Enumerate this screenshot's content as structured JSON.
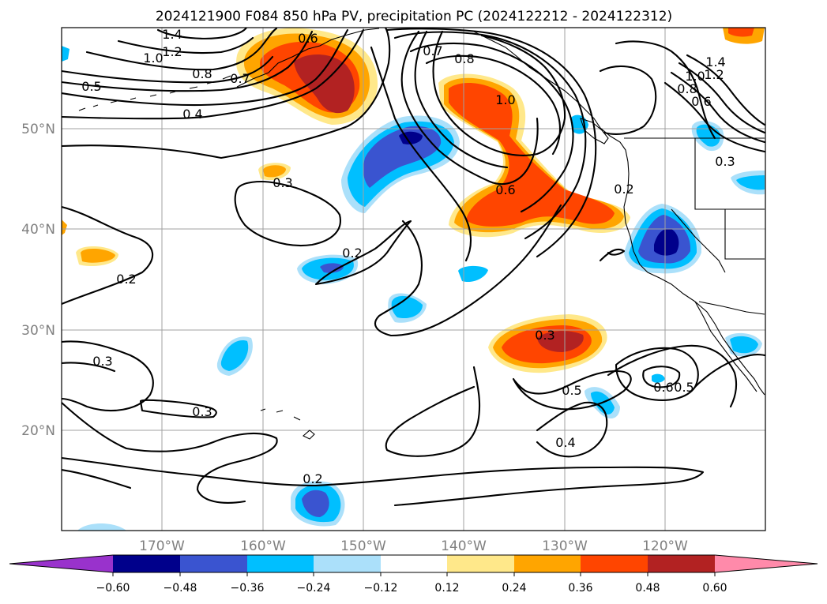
{
  "title": "2024121900 F084 850 hPa PV, precipitation PC (2024122212 - 2024122312)",
  "lat_labels": [
    "50°N",
    "40°N",
    "30°N",
    "20°N"
  ],
  "lon_labels": [
    "170°W",
    "160°W",
    "150°W",
    "140°W",
    "130°W",
    "120°W"
  ],
  "colorbar": {
    "ticks": [
      "−0.60",
      "−0.48",
      "−0.36",
      "−0.24",
      "−0.12",
      "0.12",
      "0.24",
      "0.36",
      "0.48",
      "0.60"
    ],
    "colors": [
      "#9932cc",
      "#00008b",
      "#3a54d0",
      "#00bfff",
      "#abe0fa",
      "#ffffff",
      "#ffe88a",
      "#ffa500",
      "#ff4500",
      "#b22222",
      "#ff8aaa"
    ]
  },
  "contour_labels": {
    "c1_4": "1.4",
    "c1_2": "1.2",
    "c1_0": "1.0",
    "c0_8a": "0.8",
    "c0_7a": "0.7",
    "c0_5a": "0.5",
    "c0_4a": "0.4",
    "c0_3a": "0.3",
    "c0_2a": "0.2",
    "c0_2b": "0.2",
    "c0_3b": "0.3",
    "c0_3c": "0.3",
    "c0_2c": "0.2",
    "c0_7b": "0.7",
    "c0_8b": "0.8",
    "c1_0b": "1.0",
    "c0_6a": "0.6",
    "c0_2d": "0.2",
    "c0_3d": "0.3",
    "c0_5b": "0.5",
    "c0_6b": "0.6",
    "c0_5c": "0.5",
    "c0_4b": "0.4",
    "c1_4b": "1.4",
    "c1_2b": "1.2",
    "c1_0c": "1.0",
    "c0_8c": "0.8",
    "c0_6c": "0.6",
    "c0_3e": "0.3",
    "c0_6d": "0.6"
  }
}
